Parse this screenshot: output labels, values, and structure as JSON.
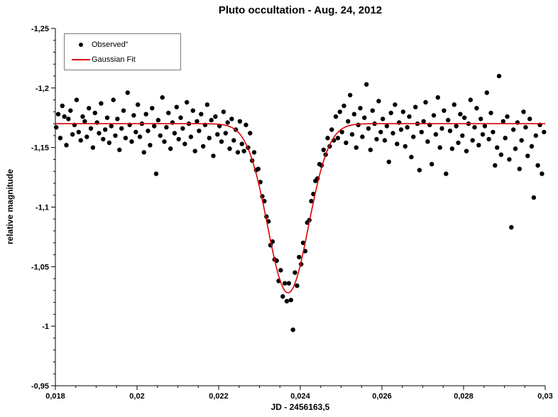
{
  "title": "Pluto occultation - Aug. 24, 2012",
  "legend": {
    "items": [
      {
        "label": "Observed\"",
        "marker": "dot",
        "color": "#000000"
      },
      {
        "label": "Gaussian Fit",
        "marker": "line",
        "color": "#dd0000"
      }
    ]
  },
  "chart_data": {
    "type": "scatter",
    "title": "Pluto occultation - Aug. 24, 2012",
    "xlabel": "JD - 2456163,5",
    "ylabel": "relative magnitude",
    "xlim": [
      0.018,
      0.03
    ],
    "ylim": [
      -1.25,
      -0.95
    ],
    "y_axis_inverted": true,
    "grid": false,
    "legend_position": "top-left",
    "x_ticks": {
      "values": [
        0.018,
        0.02,
        0.022,
        0.024,
        0.026,
        0.028,
        0.03
      ],
      "labels": [
        "0,018",
        "0,02",
        "0,022",
        "0,024",
        "0,026",
        "0,028",
        "0,03"
      ]
    },
    "y_ticks": {
      "values": [
        -1.25,
        -1.2,
        -1.15,
        -1.1,
        -1.05,
        -1,
        -0.95
      ],
      "labels": [
        "-1,25",
        "-1,2",
        "-1,15",
        "-1,1",
        "-1,05",
        "-1",
        "-0,95"
      ]
    },
    "x_minor_step": 0.0005,
    "y_minor_step": 0.01,
    "series": [
      {
        "name": "Observed\"",
        "type": "scatter",
        "color": "#000000",
        "marker_radius": 3.2,
        "x_start": 0.01802,
        "x_step": 5e-05,
        "y": [
          -1.167,
          -1.178,
          -1.158,
          -1.185,
          -1.176,
          -1.152,
          -1.174,
          -1.181,
          -1.161,
          -1.169,
          -1.19,
          -1.163,
          -1.156,
          -1.176,
          -1.172,
          -1.159,
          -1.183,
          -1.166,
          -1.15,
          -1.179,
          -1.171,
          -1.162,
          -1.187,
          -1.157,
          -1.165,
          -1.175,
          -1.154,
          -1.168,
          -1.19,
          -1.16,
          -1.174,
          -1.148,
          -1.166,
          -1.181,
          -1.158,
          -1.196,
          -1.169,
          -1.155,
          -1.177,
          -1.163,
          -1.186,
          -1.159,
          -1.17,
          -1.146,
          -1.178,
          -1.164,
          -1.152,
          -1.183,
          -1.168,
          -1.128,
          -1.173,
          -1.16,
          -1.192,
          -1.155,
          -1.167,
          -1.179,
          -1.149,
          -1.171,
          -1.162,
          -1.184,
          -1.157,
          -1.175,
          -1.166,
          -1.153,
          -1.188,
          -1.17,
          -1.159,
          -1.181,
          -1.147,
          -1.172,
          -1.164,
          -1.178,
          -1.151,
          -1.169,
          -1.186,
          -1.158,
          -1.173,
          -1.143,
          -1.176,
          -1.161,
          -1.168,
          -1.155,
          -1.18,
          -1.162,
          -1.171,
          -1.149,
          -1.174,
          -1.156,
          -1.165,
          -1.146,
          -1.172,
          -1.153,
          -1.147,
          -1.169,
          -1.15,
          -1.162,
          -1.139,
          -1.146,
          -1.131,
          -1.132,
          -1.121,
          -1.109,
          -1.105,
          -1.092,
          -1.088,
          -1.068,
          -1.071,
          -1.056,
          -1.055,
          -1.038,
          -1.047,
          -1.025,
          -1.036,
          -1.021,
          -1.036,
          -1.022,
          -0.997,
          -1.045,
          -1.034,
          -1.058,
          -1.052,
          -1.07,
          -1.063,
          -1.087,
          -1.089,
          -1.105,
          -1.111,
          -1.122,
          -1.124,
          -1.136,
          -1.135,
          -1.148,
          -1.144,
          -1.158,
          -1.151,
          -1.165,
          -1.156,
          -1.176,
          -1.158,
          -1.18,
          -1.163,
          -1.185,
          -1.154,
          -1.172,
          -1.194,
          -1.161,
          -1.178,
          -1.15,
          -1.169,
          -1.183,
          -1.159,
          -1.175,
          -1.203,
          -1.166,
          -1.148,
          -1.181,
          -1.17,
          -1.157,
          -1.189,
          -1.163,
          -1.174,
          -1.156,
          -1.168,
          -1.138,
          -1.179,
          -1.162,
          -1.186,
          -1.153,
          -1.171,
          -1.165,
          -1.18,
          -1.151,
          -1.167,
          -1.176,
          -1.142,
          -1.159,
          -1.184,
          -1.17,
          -1.131,
          -1.163,
          -1.172,
          -1.188,
          -1.155,
          -1.169,
          -1.136,
          -1.177,
          -1.161,
          -1.192,
          -1.15,
          -1.166,
          -1.181,
          -1.128,
          -1.173,
          -1.164,
          -1.149,
          -1.186,
          -1.168,
          -1.154,
          -1.178,
          -1.16,
          -1.175,
          -1.147,
          -1.17,
          -1.19,
          -1.156,
          -1.167,
          -1.183,
          -1.152,
          -1.174,
          -1.161,
          -1.168,
          -1.196,
          -1.157,
          -1.179,
          -1.163,
          -1.135,
          -1.15,
          -1.21,
          -1.144,
          -1.172,
          -1.158,
          -1.176,
          -1.14,
          -1.083,
          -1.165,
          -1.149,
          -1.171,
          -1.132,
          -1.156,
          -1.18,
          -1.167,
          -1.143,
          -1.174,
          -1.151,
          -1.108,
          -1.16,
          -1.135,
          -1.169,
          -1.128,
          -1.163
        ]
      },
      {
        "name": "Gaussian Fit",
        "type": "gaussian_fit",
        "color": "#dd0000",
        "baseline": -1.17,
        "depth": 0.142,
        "center": 0.0237,
        "sigma": 0.0005
      }
    ]
  }
}
